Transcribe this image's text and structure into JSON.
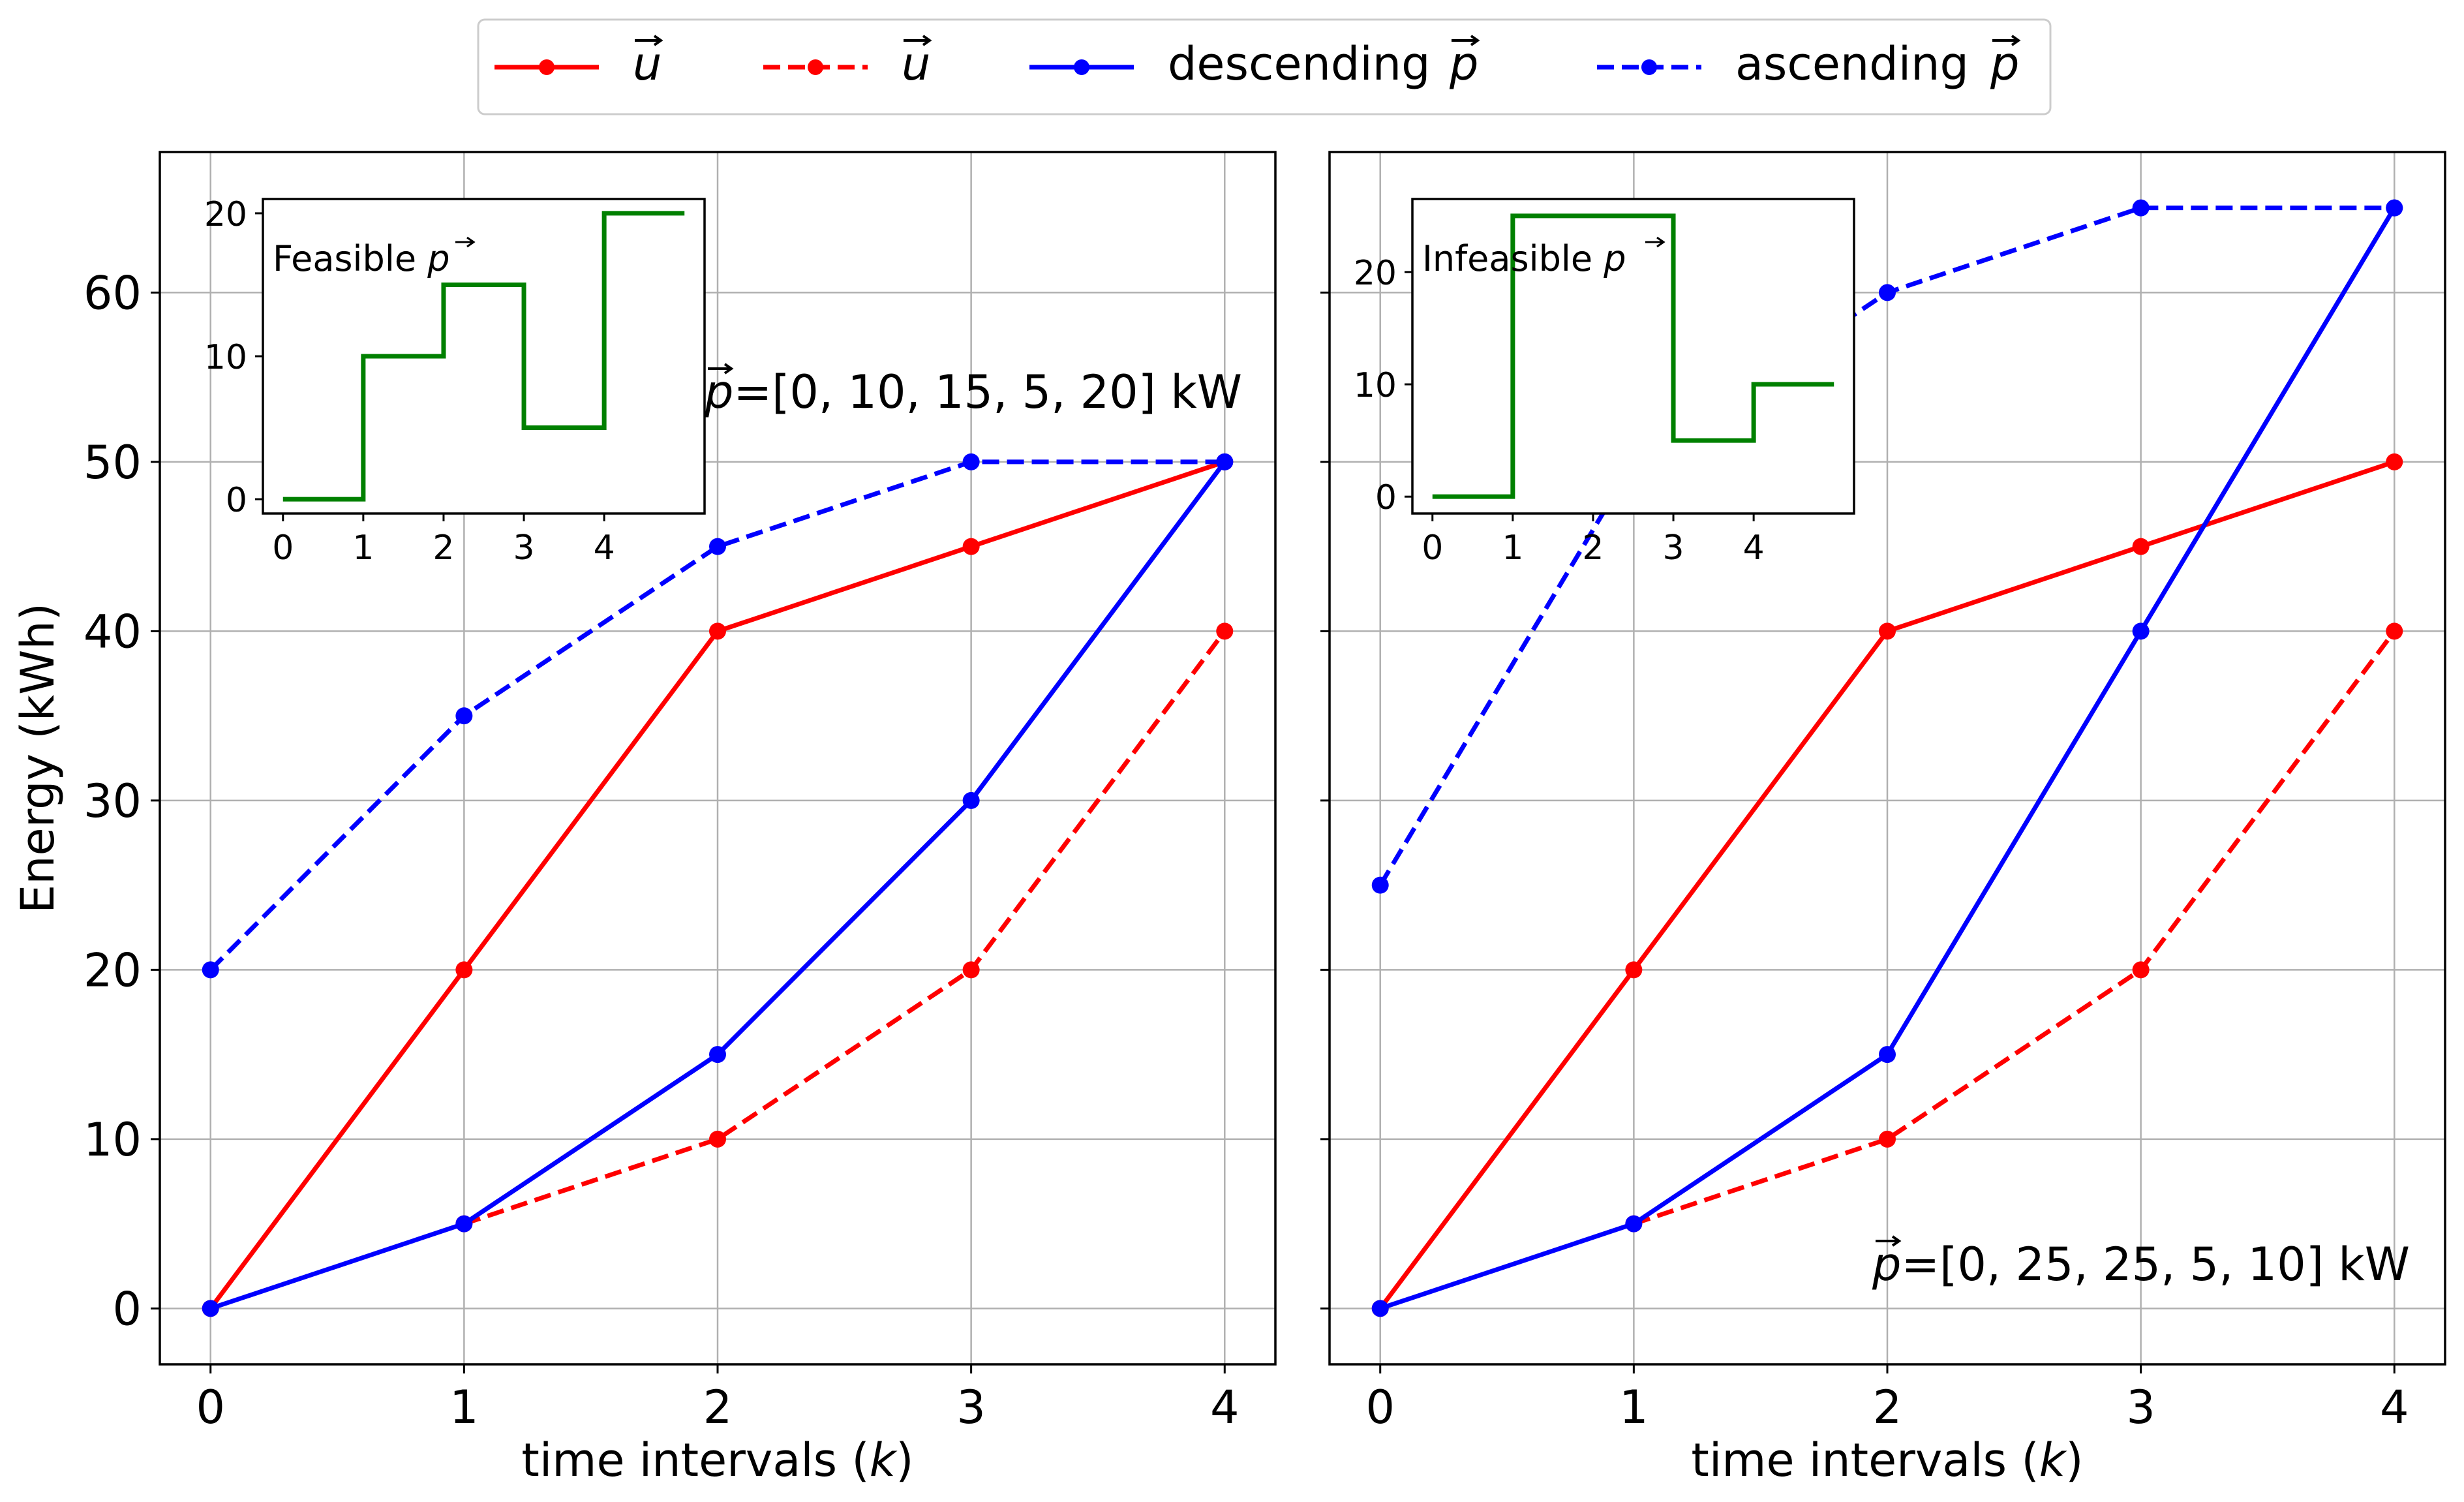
{
  "legend": {
    "placement": "top-center",
    "entries": [
      {
        "label": "u",
        "arrow": true,
        "color": "#ff0000",
        "dash": false
      },
      {
        "label": "u",
        "arrow": true,
        "color": "#ff0000",
        "dash": true
      },
      {
        "label": "descending p",
        "arrow": true,
        "color": "#0000ff",
        "dash": false
      },
      {
        "label": "ascending p",
        "arrow": true,
        "color": "#0000ff",
        "dash": true
      }
    ]
  },
  "chart_data": [
    {
      "type": "line",
      "xlabel": "time intervals (k)",
      "ylabel": "Energy (kWh)",
      "xlim": [
        -0.2,
        4.2
      ],
      "ylim": [
        -3.3,
        68.3
      ],
      "xticks": [
        0,
        1,
        2,
        3,
        4
      ],
      "yticks": [
        0,
        10,
        20,
        30,
        40,
        50,
        60
      ],
      "grid": true,
      "x": [
        0,
        1,
        2,
        3,
        4
      ],
      "annotation": "p=[0, 10, 15, 5, 20] kW",
      "series": [
        {
          "values": [
            0,
            20,
            40,
            45,
            50
          ],
          "color": "#ff0000",
          "dash": false,
          "x": [
            0,
            1,
            2,
            3,
            4
          ]
        },
        {
          "values": [
            5,
            10,
            20,
            40
          ],
          "color": "#ff0000",
          "dash": true,
          "x": [
            1,
            2,
            3,
            4
          ]
        },
        {
          "values": [
            0,
            5,
            15,
            30,
            50
          ],
          "color": "#0000ff",
          "dash": false,
          "x": [
            0,
            1,
            2,
            3,
            4
          ]
        },
        {
          "values": [
            20,
            35,
            45,
            50,
            50
          ],
          "color": "#0000ff",
          "dash": true,
          "x": [
            0,
            1,
            2,
            3,
            4
          ]
        }
      ],
      "inset": {
        "type": "step",
        "label": "Feasible p",
        "x": [
          0,
          1,
          2,
          3,
          4,
          5
        ],
        "values": [
          0,
          10,
          15,
          5,
          20
        ],
        "color": "#008000",
        "xticks": [
          0,
          1,
          2,
          3,
          4
        ],
        "yticks": [
          0,
          10,
          20
        ],
        "xlim": [
          -0.25,
          5.25
        ],
        "ylim": [
          -1.0,
          21.0
        ]
      }
    },
    {
      "type": "line",
      "xlabel": "time intervals (k)",
      "ylabel": "",
      "xlim": [
        -0.2,
        4.2
      ],
      "ylim": [
        -3.3,
        68.3
      ],
      "xticks": [
        0,
        1,
        2,
        3,
        4
      ],
      "yticks": [
        0,
        10,
        20,
        30,
        40,
        50,
        60
      ],
      "grid": true,
      "x": [
        0,
        1,
        2,
        3,
        4
      ],
      "annotation": "p=[0, 25, 25, 5, 10] kW",
      "series": [
        {
          "values": [
            0,
            20,
            40,
            45,
            50
          ],
          "color": "#ff0000",
          "dash": false,
          "x": [
            0,
            1,
            2,
            3,
            4
          ]
        },
        {
          "values": [
            5,
            10,
            20,
            40
          ],
          "color": "#ff0000",
          "dash": true,
          "x": [
            1,
            2,
            3,
            4
          ]
        },
        {
          "values": [
            0,
            5,
            15,
            40,
            65
          ],
          "color": "#0000ff",
          "dash": false,
          "x": [
            0,
            1,
            2,
            3,
            4
          ]
        },
        {
          "values": [
            25,
            50,
            60,
            65,
            65
          ],
          "color": "#0000ff",
          "dash": true,
          "x": [
            0,
            1,
            2,
            3,
            4
          ]
        }
      ],
      "inset": {
        "type": "step",
        "label": "Infeasible p",
        "x": [
          0,
          1,
          2,
          3,
          4,
          5
        ],
        "values": [
          0,
          25,
          25,
          5,
          10
        ],
        "color": "#008000",
        "xticks": [
          0,
          1,
          2,
          3,
          4
        ],
        "yticks": [
          0,
          10,
          20
        ],
        "xlim": [
          -0.25,
          5.25
        ],
        "ylim": [
          -1.5,
          26.5
        ]
      }
    }
  ]
}
